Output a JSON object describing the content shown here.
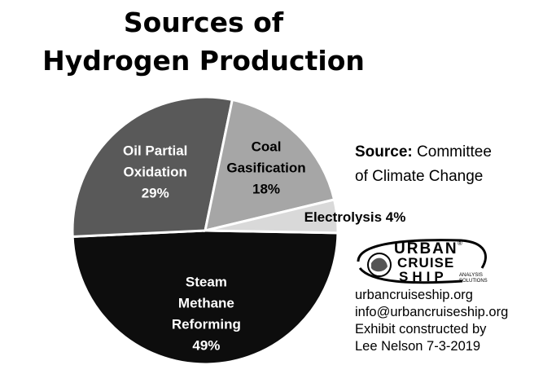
{
  "chart_data": {
    "type": "pie",
    "title_lines": [
      "Sources of",
      "Hydrogen Production"
    ],
    "slices": [
      {
        "label_lines": [
          "Steam",
          "Methane",
          "Reforming",
          "49%"
        ],
        "value": 49,
        "color": "#0d0d0d",
        "text_color": "#ffffff"
      },
      {
        "label_lines": [
          "Oil Partial",
          "Oxidation",
          "29%"
        ],
        "value": 29,
        "color": "#595959",
        "text_color": "#ffffff"
      },
      {
        "label_lines": [
          "Coal",
          "Gasification",
          "18%"
        ],
        "value": 18,
        "color": "#a6a6a6",
        "text_color": "#000000"
      },
      {
        "label_lines": [
          "Electrolysis 4%"
        ],
        "value": 4,
        "color": "#d9d9d9",
        "text_color": "#000000",
        "label_outside": true
      }
    ]
  },
  "source": {
    "prefix": "Source:",
    "text_line1": "Committee",
    "text_line2": "of Climate Change"
  },
  "logo": {
    "line1": "URBAN",
    "line2": "CRUISE",
    "line3": "SHIP",
    "tagline_line1": "ANALYSIS",
    "tagline_line2": "SOLUTIONS",
    "registered": "®"
  },
  "contact": {
    "website": "urbancruiseship.org",
    "email": "info@urbancruiseship.org",
    "credit_line1": "Exhibit constructed by",
    "credit_line2": "Lee Nelson 7-3-2019"
  }
}
